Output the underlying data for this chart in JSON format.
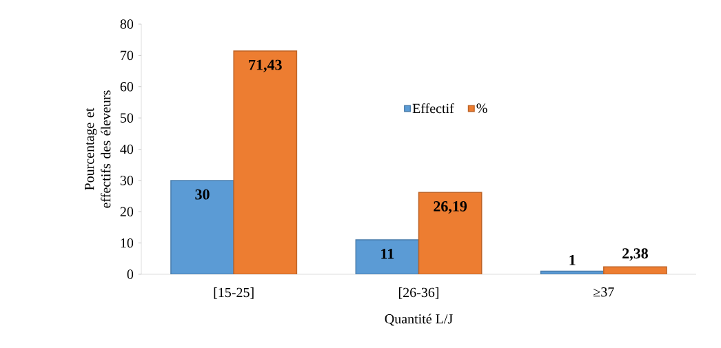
{
  "chart_data": {
    "type": "bar",
    "xlabel": "Quantité L/J",
    "ylabel": "Pourcentage et effectifs des éleveurs",
    "categories": [
      "[15-25]",
      "[26-36]",
      "≥37"
    ],
    "series": [
      {
        "name": "Effectif",
        "color": "#5b9bd5",
        "values": [
          30,
          11,
          1
        ],
        "value_labels": [
          "30",
          "11",
          "1"
        ]
      },
      {
        "name": "%",
        "color": "#ed7d31",
        "values": [
          71.43,
          26.19,
          2.38
        ],
        "value_labels": [
          "71,43",
          "26,19",
          "2,38"
        ]
      }
    ],
    "ylim": [
      0,
      80
    ],
    "yticks": [
      0,
      10,
      20,
      30,
      40,
      50,
      60,
      70,
      80
    ],
    "grid": false,
    "legend": "top"
  }
}
